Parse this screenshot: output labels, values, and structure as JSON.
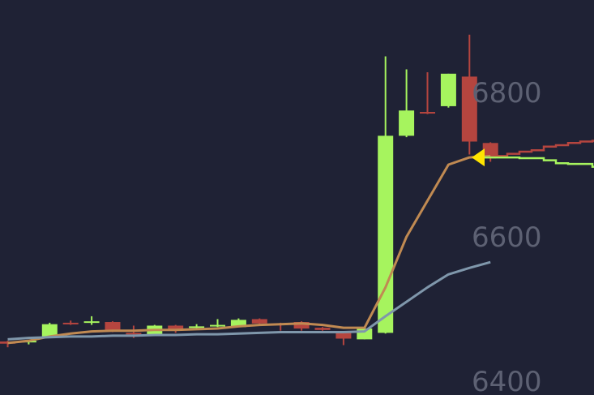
{
  "chart_data": {
    "type": "candlestick",
    "colors": {
      "background": "#1f2235",
      "up": "#a6f45e",
      "down": "#b5453f",
      "ma_fast": "#c08a52",
      "ma_slow": "#7f97ab",
      "marker": "#ffe500",
      "tick_label": "#5d6173"
    },
    "y_axis": {
      "ticks": [
        6400,
        6600,
        6800
      ],
      "tick_labels": [
        "6400",
        "6600",
        "6800"
      ],
      "range": [
        6384,
        6900
      ],
      "grid": false,
      "position": "right"
    },
    "candles": [
      {
        "o": 6455,
        "h": 6456,
        "l": 6447,
        "c": 6452
      },
      {
        "o": 6454,
        "h": 6457,
        "l": 6451,
        "c": 6456
      },
      {
        "o": 6461,
        "h": 6481,
        "l": 6461,
        "c": 6479
      },
      {
        "o": 6481,
        "h": 6484,
        "l": 6478,
        "c": 6479
      },
      {
        "o": 6482,
        "h": 6490,
        "l": 6478,
        "c": 6483
      },
      {
        "o": 6482,
        "h": 6483,
        "l": 6468,
        "c": 6469
      },
      {
        "o": 6467,
        "h": 6477,
        "l": 6460,
        "c": 6466
      },
      {
        "o": 6463,
        "h": 6478,
        "l": 6463,
        "c": 6477
      },
      {
        "o": 6477,
        "h": 6478,
        "l": 6467,
        "c": 6471
      },
      {
        "o": 6474,
        "h": 6479,
        "l": 6472,
        "c": 6476
      },
      {
        "o": 6476,
        "h": 6486,
        "l": 6475,
        "c": 6478
      },
      {
        "o": 6475,
        "h": 6487,
        "l": 6475,
        "c": 6485
      },
      {
        "o": 6486,
        "h": 6487,
        "l": 6478,
        "c": 6480
      },
      {
        "o": 6480,
        "h": 6481,
        "l": 6470,
        "c": 6479
      },
      {
        "o": 6482,
        "h": 6483,
        "l": 6470,
        "c": 6473
      },
      {
        "o": 6474,
        "h": 6475,
        "l": 6470,
        "c": 6471
      },
      {
        "o": 6468,
        "h": 6468,
        "l": 6450,
        "c": 6459
      },
      {
        "o": 6458,
        "h": 6474,
        "l": 6458,
        "c": 6473
      },
      {
        "o": 6467,
        "h": 6850,
        "l": 6466,
        "c": 6740
      },
      {
        "o": 6740,
        "h": 6832,
        "l": 6738,
        "c": 6775
      },
      {
        "o": 6773,
        "h": 6828,
        "l": 6770,
        "c": 6771
      },
      {
        "o": 6781,
        "h": 6826,
        "l": 6779,
        "c": 6826
      },
      {
        "o": 6822,
        "h": 6880,
        "l": 6714,
        "c": 6732
      },
      {
        "o": 6730,
        "h": 6731,
        "l": 6704,
        "c": 6710
      }
    ],
    "series": [
      {
        "values": [
          6453,
          6456,
          6462,
          6466,
          6469,
          6470,
          6470,
          6471,
          6471,
          6472,
          6473,
          6476,
          6478,
          6479,
          6480,
          6478,
          6474,
          6474,
          6530,
          6600,
          6650,
          6700,
          6710,
          6712
        ],
        "style": "ma_fast"
      },
      {
        "values": [
          6458,
          6460,
          6461,
          6462,
          6462,
          6463,
          6463,
          6464,
          6464,
          6465,
          6465,
          6466,
          6467,
          6468,
          6468,
          6468,
          6468,
          6469,
          6490,
          6510,
          6530,
          6548,
          6557,
          6565
        ],
        "style": "ma_slow"
      }
    ],
    "last_price": 6710,
    "extension_lines": [
      {
        "style": "down",
        "values": [
          6710,
          6712,
          6715,
          6718,
          6720,
          6725,
          6727,
          6730,
          6732,
          6733
        ]
      },
      {
        "style": "up",
        "values": [
          6710,
          6710,
          6710,
          6709,
          6709,
          6706,
          6702,
          6701,
          6701,
          6697
        ]
      }
    ]
  }
}
